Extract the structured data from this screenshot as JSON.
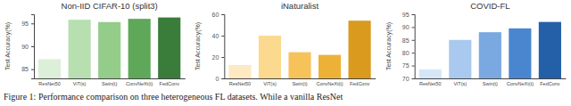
{
  "chart_data": [
    {
      "type": "bar",
      "title": "Non-IID CIFAR-10 (split3)",
      "y_label": "Test Accuracy(%)",
      "categories": [
        "ResNet50",
        "ViT(s)",
        "Swin(t)",
        "ConvNeXt(t)",
        "FedConv"
      ],
      "values": [
        87.2,
        95.8,
        95.3,
        96.0,
        96.3
      ],
      "colors": [
        "#dcefd8",
        "#b7dfb0",
        "#93cd89",
        "#5fa85a",
        "#3a7d3a"
      ],
      "ylim": [
        83,
        97
      ],
      "yticks": [
        85,
        90,
        95
      ],
      "grid": false
    },
    {
      "type": "bar",
      "title": "iNaturalist",
      "y_label": "Test Accuracy(%)",
      "categories": [
        "ResNet50",
        "ViT(s)",
        "Swin(t)",
        "ConvNeXt(t)",
        "FedConv"
      ],
      "values": [
        12.5,
        40,
        24.5,
        22,
        54
      ],
      "colors": [
        "#fde9c2",
        "#fbd98f",
        "#f6c35a",
        "#eeb138",
        "#d99a1e"
      ],
      "ylim": [
        0,
        60
      ],
      "yticks": [
        0,
        20,
        40,
        60
      ],
      "grid": false
    },
    {
      "type": "bar",
      "title": "COVID-FL",
      "y_label": "Test Accuracy(%)",
      "categories": [
        "ResNet50",
        "ViT(s)",
        "Swin(t)",
        "ConvNeXt(t)",
        "FedConv"
      ],
      "values": [
        73.5,
        85,
        88,
        89.5,
        92
      ],
      "colors": [
        "#d6e6f7",
        "#a9c9ee",
        "#7aa9e2",
        "#4a86cf",
        "#2360a8"
      ],
      "ylim": [
        70,
        95
      ],
      "yticks": [
        70,
        75,
        80,
        85,
        90,
        95
      ],
      "grid": false
    }
  ],
  "caption": "Figure 1: Performance comparison on three heterogeneous FL datasets. While a vanilla ResNet"
}
